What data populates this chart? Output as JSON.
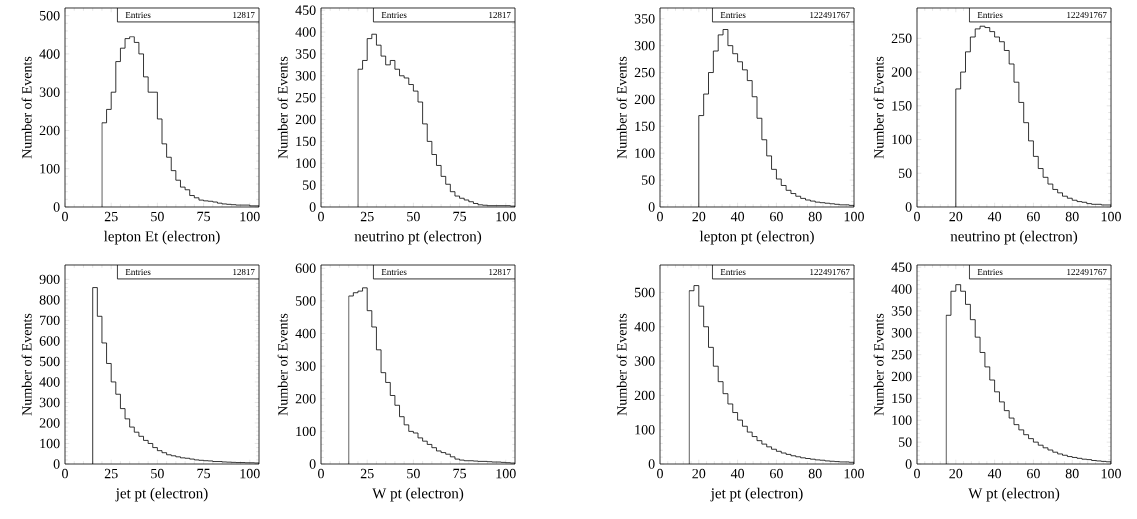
{
  "chart_data": [
    {
      "type": "histogram",
      "xlabel": "lepton Et (electron)",
      "ylabel": "Number of Events",
      "color": "#000000",
      "annotations": [
        "Entries",
        "12817"
      ],
      "xlim": [
        0,
        105
      ],
      "ylim": [
        0,
        520
      ],
      "xticks": [
        0,
        25,
        50,
        75,
        100
      ],
      "yticks": [
        0,
        100,
        200,
        300,
        400,
        500
      ],
      "bins": [
        20,
        22.5,
        25,
        27.5,
        30,
        32.5,
        35,
        37.5,
        40,
        42.5,
        45,
        47.5,
        50,
        52.5,
        55,
        57.5,
        60,
        62.5,
        65,
        67.5,
        70,
        72.5,
        75,
        77.5,
        80,
        82.5,
        85,
        87.5,
        90,
        92.5,
        95,
        97.5,
        100,
        102.5,
        105
      ],
      "values": [
        220,
        255,
        300,
        380,
        415,
        440,
        445,
        430,
        400,
        340,
        300,
        300,
        230,
        165,
        130,
        95,
        70,
        52,
        45,
        30,
        24,
        18,
        16,
        15,
        13,
        10,
        8,
        7,
        6,
        5,
        5,
        5,
        3,
        3
      ]
    },
    {
      "type": "histogram",
      "xlabel": "neutrino pt (electron)",
      "ylabel": "Number of Events",
      "color": "#000000",
      "annotations": [
        "Entries",
        "12817"
      ],
      "xlim": [
        0,
        105
      ],
      "ylim": [
        0,
        455
      ],
      "xticks": [
        0,
        25,
        50,
        75,
        100
      ],
      "yticks": [
        0,
        50,
        100,
        150,
        200,
        250,
        300,
        350,
        400,
        450
      ],
      "bins": [
        20,
        22.5,
        25,
        27.5,
        30,
        32.5,
        35,
        37.5,
        40,
        42.5,
        45,
        47.5,
        50,
        52.5,
        55,
        57.5,
        60,
        62.5,
        65,
        67.5,
        70,
        72.5,
        75,
        77.5,
        80,
        82.5,
        85,
        87.5,
        90,
        92.5,
        95,
        97.5,
        100,
        102.5,
        105
      ],
      "values": [
        315,
        335,
        385,
        395,
        370,
        345,
        325,
        335,
        315,
        300,
        295,
        280,
        265,
        240,
        190,
        150,
        120,
        95,
        70,
        52,
        35,
        25,
        20,
        16,
        12,
        8,
        5,
        4,
        3,
        3,
        3,
        3,
        3,
        2
      ]
    },
    {
      "type": "histogram",
      "xlabel": "lepton pt (electron)",
      "ylabel": "Number of Events",
      "color": "#000000",
      "annotations": [
        "Entries",
        "122491767"
      ],
      "xlim": [
        0,
        100
      ],
      "ylim": [
        0,
        370
      ],
      "xticks": [
        0,
        20,
        40,
        60,
        80,
        100
      ],
      "yticks": [
        0,
        50,
        100,
        150,
        200,
        250,
        300,
        350
      ],
      "bins": [
        20,
        22.5,
        25,
        27.5,
        30,
        32.5,
        35,
        37.5,
        40,
        42.5,
        45,
        47.5,
        50,
        52.5,
        55,
        57.5,
        60,
        62.5,
        65,
        67.5,
        70,
        72.5,
        75,
        77.5,
        80,
        82.5,
        85,
        87.5,
        90,
        92.5,
        95,
        97.5,
        100
      ],
      "values": [
        170,
        210,
        250,
        290,
        320,
        330,
        300,
        285,
        270,
        255,
        235,
        205,
        165,
        125,
        95,
        70,
        52,
        40,
        31,
        25,
        20,
        16,
        13,
        11,
        9,
        8,
        7,
        6,
        5,
        4,
        4,
        3
      ]
    },
    {
      "type": "histogram",
      "xlabel": "neutrino pt (electron)",
      "ylabel": "Number of Events",
      "color": "#000000",
      "annotations": [
        "Entries",
        "122491767"
      ],
      "xlim": [
        0,
        100
      ],
      "ylim": [
        0,
        295
      ],
      "xticks": [
        0,
        20,
        40,
        60,
        80,
        100
      ],
      "yticks": [
        0,
        50,
        100,
        150,
        200,
        250
      ],
      "bins": [
        20,
        22.5,
        25,
        27.5,
        30,
        32.5,
        35,
        37.5,
        40,
        42.5,
        45,
        47.5,
        50,
        52.5,
        55,
        57.5,
        60,
        62.5,
        65,
        67.5,
        70,
        72.5,
        75,
        77.5,
        80,
        82.5,
        85,
        87.5,
        90,
        92.5,
        95,
        97.5,
        100
      ],
      "values": [
        175,
        200,
        230,
        252,
        264,
        268,
        266,
        260,
        252,
        245,
        232,
        212,
        185,
        155,
        125,
        98,
        75,
        57,
        44,
        34,
        26,
        21,
        16,
        13,
        10,
        8,
        7,
        5,
        4,
        4,
        3,
        3
      ]
    },
    {
      "type": "histogram",
      "xlabel": "jet pt (electron)",
      "ylabel": "Number of Events",
      "color": "#000000",
      "annotations": [
        "Entries",
        "12817"
      ],
      "xlim": [
        0,
        105
      ],
      "ylim": [
        0,
        970
      ],
      "xticks": [
        0,
        25,
        50,
        75,
        100
      ],
      "yticks": [
        0,
        100,
        200,
        300,
        400,
        500,
        600,
        700,
        800,
        900
      ],
      "bins": [
        15,
        17.5,
        20,
        22.5,
        25,
        27.5,
        30,
        32.5,
        35,
        37.5,
        40,
        42.5,
        45,
        47.5,
        50,
        52.5,
        55,
        57.5,
        60,
        62.5,
        65,
        67.5,
        70,
        72.5,
        75,
        77.5,
        80,
        82.5,
        85,
        87.5,
        90,
        92.5,
        95,
        97.5,
        100,
        102.5,
        105
      ],
      "values": [
        860,
        720,
        590,
        490,
        400,
        340,
        270,
        220,
        180,
        155,
        135,
        115,
        100,
        80,
        65,
        55,
        45,
        40,
        35,
        30,
        28,
        24,
        20,
        18,
        16,
        15,
        12,
        12,
        10,
        9,
        8,
        7,
        7,
        6,
        6,
        5
      ]
    },
    {
      "type": "histogram",
      "xlabel": "W pt (electron)",
      "ylabel": "Number of Events",
      "color": "#000000",
      "annotations": [
        "Entries",
        "12817"
      ],
      "xlim": [
        0,
        105
      ],
      "ylim": [
        0,
        610
      ],
      "xticks": [
        0,
        25,
        50,
        75,
        100
      ],
      "yticks": [
        0,
        100,
        200,
        300,
        400,
        500,
        600
      ],
      "bins": [
        15,
        17.5,
        20,
        22.5,
        25,
        27.5,
        30,
        32.5,
        35,
        37.5,
        40,
        42.5,
        45,
        47.5,
        50,
        52.5,
        55,
        57.5,
        60,
        62.5,
        65,
        67.5,
        70,
        72.5,
        75,
        77.5,
        80,
        82.5,
        85,
        87.5,
        90,
        92.5,
        95,
        97.5,
        100,
        102.5,
        105
      ],
      "values": [
        515,
        525,
        530,
        540,
        470,
        420,
        350,
        280,
        250,
        210,
        180,
        145,
        120,
        100,
        95,
        80,
        70,
        60,
        50,
        40,
        35,
        30,
        22,
        15,
        12,
        10,
        10,
        9,
        8,
        8,
        7,
        6,
        6,
        5,
        4,
        3
      ]
    },
    {
      "type": "histogram",
      "xlabel": "jet pt (electron)",
      "ylabel": "Number of Events",
      "color": "#000000",
      "annotations": [
        "Entries",
        "122491767"
      ],
      "xlim": [
        0,
        100
      ],
      "ylim": [
        0,
        580
      ],
      "xticks": [
        0,
        20,
        40,
        60,
        80,
        100
      ],
      "yticks": [
        0,
        100,
        200,
        300,
        400,
        500
      ],
      "bins": [
        15,
        17.5,
        20,
        22.5,
        25,
        27.5,
        30,
        32.5,
        35,
        37.5,
        40,
        42.5,
        45,
        47.5,
        50,
        52.5,
        55,
        57.5,
        60,
        62.5,
        65,
        67.5,
        70,
        72.5,
        75,
        77.5,
        80,
        82.5,
        85,
        87.5,
        90,
        92.5,
        95,
        97.5,
        100
      ],
      "values": [
        505,
        520,
        460,
        400,
        340,
        285,
        240,
        205,
        175,
        150,
        128,
        110,
        93,
        80,
        68,
        58,
        50,
        43,
        37,
        32,
        28,
        24,
        21,
        18,
        16,
        14,
        12,
        11,
        9,
        8,
        7,
        6,
        6,
        5
      ]
    },
    {
      "type": "histogram",
      "xlabel": "W pt (electron)",
      "ylabel": "Number of Events",
      "color": "#000000",
      "annotations": [
        "Entries",
        "122491767"
      ],
      "xlim": [
        0,
        100
      ],
      "ylim": [
        0,
        455
      ],
      "xticks": [
        0,
        20,
        40,
        60,
        80,
        100
      ],
      "yticks": [
        0,
        50,
        100,
        150,
        200,
        250,
        300,
        350,
        400,
        450
      ],
      "bins": [
        15,
        17.5,
        20,
        22.5,
        25,
        27.5,
        30,
        32.5,
        35,
        37.5,
        40,
        42.5,
        45,
        47.5,
        50,
        52.5,
        55,
        57.5,
        60,
        62.5,
        65,
        67.5,
        70,
        72.5,
        75,
        77.5,
        80,
        82.5,
        85,
        87.5,
        90,
        92.5,
        95,
        97.5,
        100
      ],
      "values": [
        340,
        395,
        410,
        395,
        365,
        330,
        290,
        255,
        222,
        192,
        165,
        142,
        122,
        105,
        90,
        78,
        67,
        58,
        50,
        43,
        37,
        32,
        27,
        23,
        20,
        17,
        15,
        13,
        11,
        10,
        8,
        7,
        6,
        5
      ]
    }
  ]
}
